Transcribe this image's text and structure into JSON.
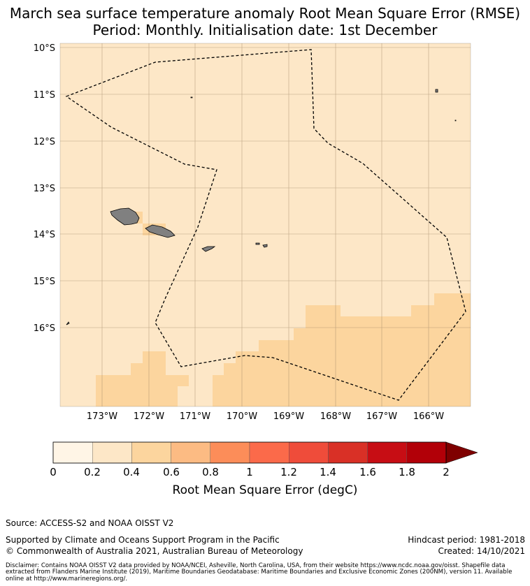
{
  "title_line1": "March sea surface temperature anomaly Root Mean Square Error (RMSE)",
  "title_line2": "Period: Monthly. Initialisation date: 1st December",
  "map": {
    "lat_labels": [
      "10°S",
      "11°S",
      "12°S",
      "13°S",
      "14°S",
      "15°S",
      "16°S"
    ],
    "lon_labels": [
      "173°W",
      "172°W",
      "171°W",
      "170°W",
      "169°W",
      "168°W",
      "167°W",
      "166°W"
    ],
    "sea_color_low": "#fde7c7",
    "sea_color_mid": "#fcd59e",
    "land_color": "#808080",
    "grid_color": "#a08868",
    "boundary_style": "dashed"
  },
  "colorbar": {
    "label": "Root Mean Square Error (degC)",
    "ticks": [
      "0",
      "0.2",
      "0.4",
      "0.6",
      "0.8",
      "1",
      "1.2",
      "1.4",
      "1.6",
      "1.8",
      "2"
    ],
    "colors": [
      "#fff5e6",
      "#fde7c7",
      "#fcd59e",
      "#fcbb83",
      "#fc8d59",
      "#fb6a4a",
      "#ef4c3a",
      "#d93026",
      "#c70d14",
      "#b20008"
    ],
    "extend_color": "#7f0000"
  },
  "footer": {
    "source": "Source: ACCESS-S2 and NOAA OISST V2",
    "supported": "Supported by Climate and Oceans Support Program in the Pacific",
    "copyright": "© Commonwealth of Australia 2021, Australian Bureau of Meteorology",
    "hindcast": "Hindcast period: 1981-2018",
    "created": "Created: 14/10/2021",
    "disclaimer": "Disclaimer: Contains NOAA OISST V2 data provided by NOAA/NCEI, Asheville, North Carolina, USA, from their website https://www.ncdc.noaa.gov/oisst. Shapefile data extracted from Flanders Marine Institute (2019), Maritime Boundaries Geodatabase: Maritime Boundaries and Exclusive Economic Zones (200NM), version 11. Available online at http://www.marineregions.org/."
  }
}
